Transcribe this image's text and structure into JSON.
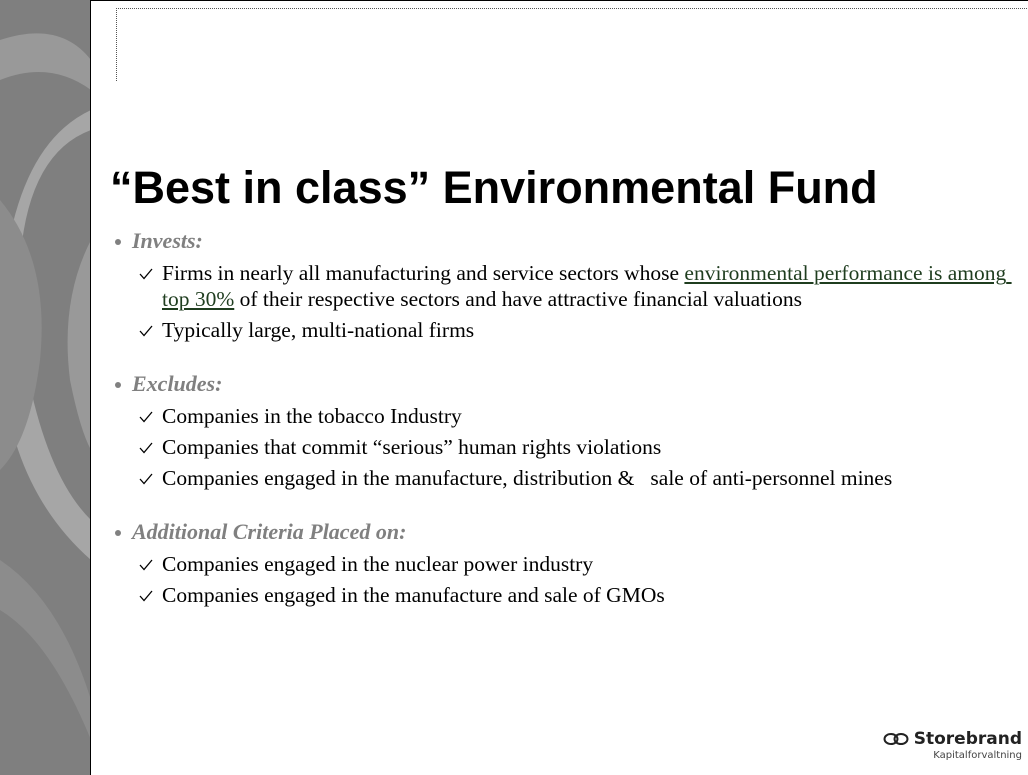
{
  "title": "“Best in class” Environmental Fund",
  "sections": [
    {
      "heading": "Invests:",
      "items": [
        {
          "before": "Firms in nearly all manufacturing and service sectors whose ",
          "underlined": "environmental performance is among top 30%",
          "after": " of their respective sectors and have attractive financial valuations"
        },
        {
          "before": "Typically large, multi-national firms"
        }
      ]
    },
    {
      "heading": "Excludes:",
      "items": [
        {
          "before": "Companies in the tobacco Industry"
        },
        {
          "before": "Companies that commit “serious” human rights violations"
        },
        {
          "before": "Companies engaged in the manufacture, distribution &   sale of anti-personnel mines"
        }
      ]
    },
    {
      "heading": "Additional Criteria Placed on:",
      "items": [
        {
          "before": "Companies engaged in the nuclear power industry"
        },
        {
          "before": "Companies engaged in the manufacture and sale of GMOs"
        }
      ]
    }
  ],
  "logo": {
    "name": "Storebrand",
    "subtitle": "Kapitalforvaltning"
  }
}
